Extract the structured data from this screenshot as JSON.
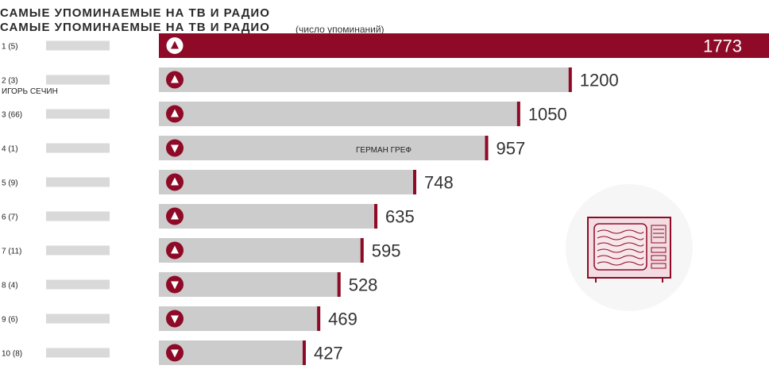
{
  "chart_data": {
    "type": "bar",
    "orientation": "horizontal",
    "title": "САМЫЕ УПОМИНАЕМЫЕ НА ТВ И РАДИО",
    "subtitle": "(число упоминаний)",
    "categories": [
      "1 (5)",
      "2 (3)",
      "3 (66)",
      "4 (1)",
      "5 (9)",
      "6 (7)",
      "7 (11)",
      "8 (4)",
      "9 (6)",
      "10 (8)"
    ],
    "values": [
      1773,
      1200,
      1050,
      957,
      748,
      635,
      595,
      528,
      469,
      427
    ],
    "trend": [
      "up",
      "up",
      "up",
      "down",
      "up",
      "up",
      "up",
      "down",
      "down",
      "down"
    ],
    "xlim": [
      0,
      1773
    ],
    "overlay_labels": [
      "ИГОРЬ СЕЧИН",
      "ГЕРМАН ГРЕФ"
    ],
    "colors": {
      "accent": "#8e0a26",
      "bar": "#cccccc",
      "top_bar": "#8e0a26",
      "text": "#333333"
    },
    "icon": "tv-icon"
  }
}
